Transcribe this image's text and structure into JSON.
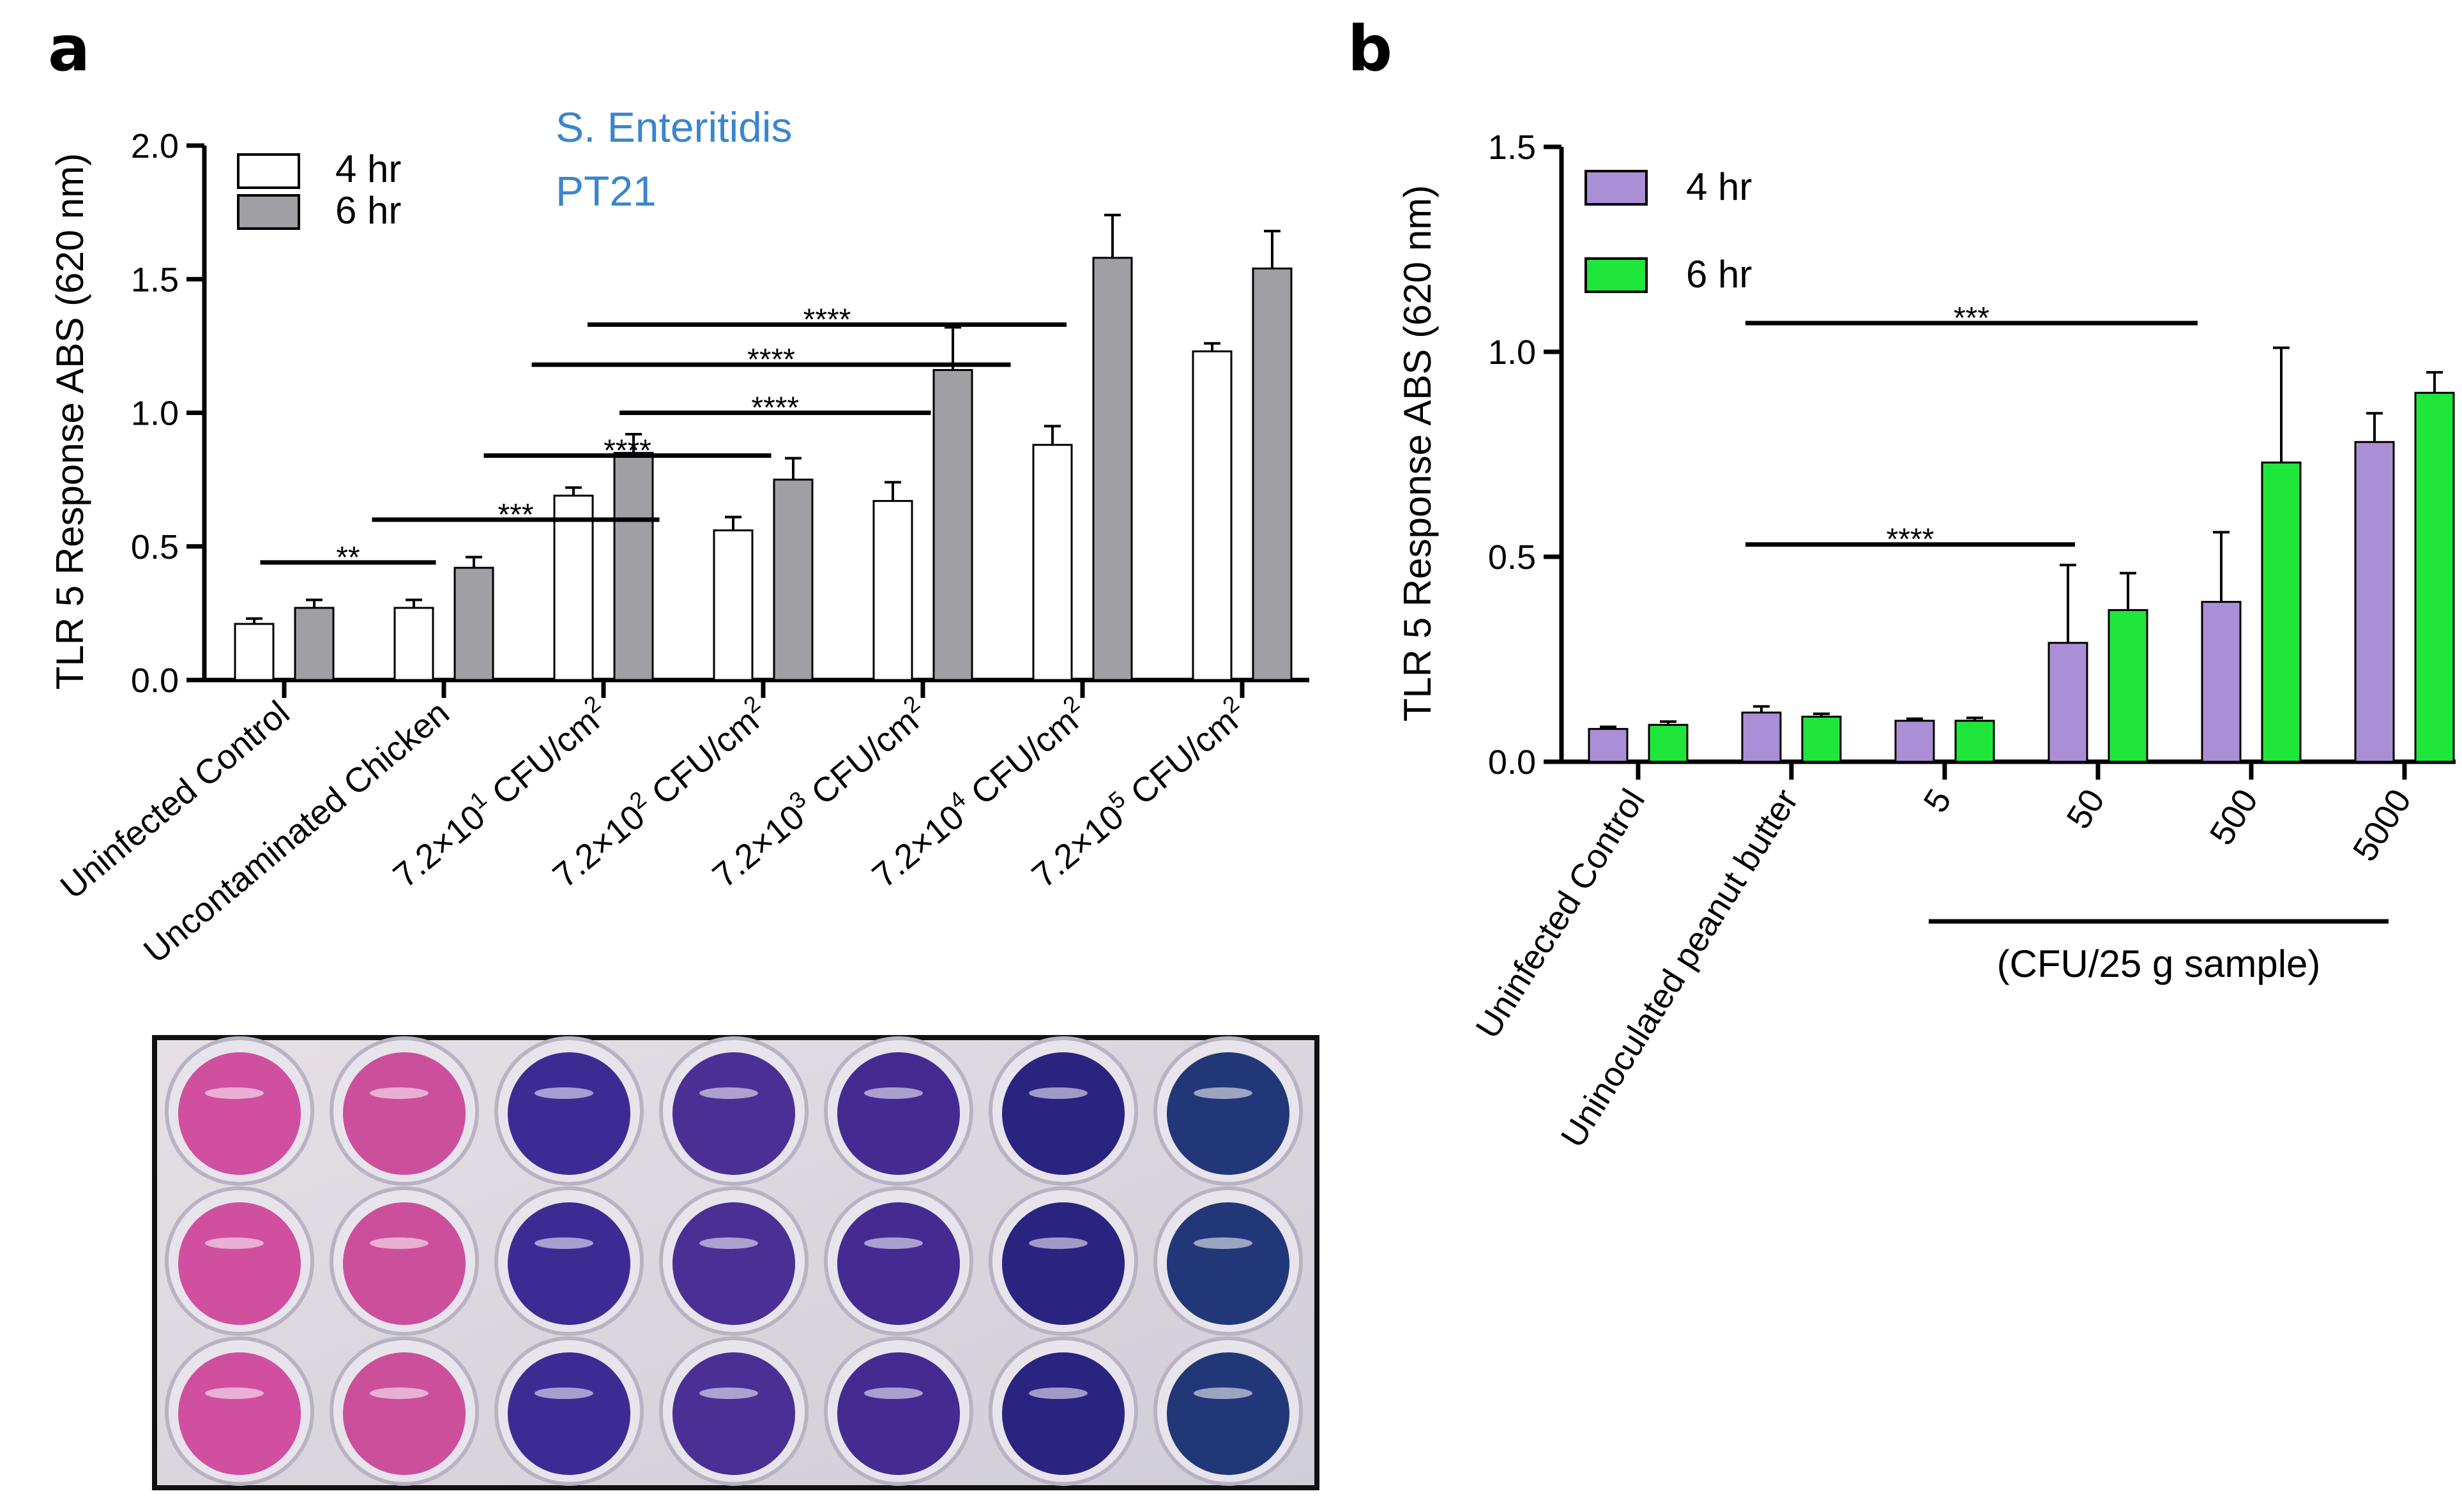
{
  "figure": {
    "panel_a_letter": "a",
    "panel_b_letter": "b",
    "plate_well_colors": [
      [
        "#d04f9f",
        "#cc4f9c",
        "#3d2b94",
        "#4a2f95",
        "#442b92",
        "#2a2380",
        "#223777"
      ],
      [
        "#d04f9f",
        "#cc4f9c",
        "#3d2b94",
        "#4a2f95",
        "#442b92",
        "#2a2380",
        "#223777"
      ],
      [
        "#d04f9f",
        "#cc4f9c",
        "#3d2b94",
        "#4a2f95",
        "#442b92",
        "#2a2380",
        "#223777"
      ]
    ]
  },
  "chart_data": [
    {
      "panel": "a",
      "type": "bar",
      "ylabel": "TLR 5 Response ABS (620 nm)",
      "ylim": [
        0,
        2.0
      ],
      "yticks": [
        "0.0",
        "0.5",
        "1.0",
        "1.5",
        "2.0"
      ],
      "ytick_values": [
        0,
        0.5,
        1.0,
        1.5,
        2.0
      ],
      "annotation": [
        "S. Enteritidis",
        "PT21"
      ],
      "legend_position": "top-left",
      "categories": [
        {
          "base": "Uninfected Control",
          "sup": "",
          "suffix": ""
        },
        {
          "base": "Uncontaminated Chicken",
          "sup": "",
          "suffix": ""
        },
        {
          "base": "7.2×10",
          "sup": "1",
          "suffix": " CFU/cm",
          "sup2": "2"
        },
        {
          "base": "7.2×10",
          "sup": "2",
          "suffix": " CFU/cm",
          "sup2": "2"
        },
        {
          "base": "7.2×10",
          "sup": "3",
          "suffix": " CFU/cm",
          "sup2": "2"
        },
        {
          "base": "7.2×10",
          "sup": "4",
          "suffix": " CFU/cm",
          "sup2": "2"
        },
        {
          "base": "7.2×10",
          "sup": "5",
          "suffix": " CFU/cm",
          "sup2": "2"
        }
      ],
      "series": [
        {
          "name": "4 hr",
          "color": "#ffffff",
          "values": [
            0.21,
            0.27,
            0.69,
            0.56,
            0.67,
            0.88,
            1.23
          ],
          "errors": [
            0.02,
            0.03,
            0.03,
            0.05,
            0.07,
            0.07,
            0.03
          ]
        },
        {
          "name": "6 hr",
          "color": "#a0a0a4",
          "values": [
            0.27,
            0.42,
            0.85,
            0.75,
            1.16,
            1.58,
            1.54
          ],
          "errors": [
            0.03,
            0.04,
            0.07,
            0.08,
            0.16,
            0.16,
            0.14
          ]
        }
      ],
      "significance": [
        {
          "label": "**",
          "x1": 0.35,
          "x2": 1.45,
          "y": 0.44
        },
        {
          "label": "***",
          "x1": 1.05,
          "x2": 2.85,
          "y": 0.6
        },
        {
          "label": "****",
          "x1": 1.75,
          "x2": 3.55,
          "y": 0.84
        },
        {
          "label": "****",
          "x1": 2.6,
          "x2": 4.55,
          "y": 1.0
        },
        {
          "label": "****",
          "x1": 2.05,
          "x2": 5.05,
          "y": 1.18
        },
        {
          "label": "****",
          "x1": 2.4,
          "x2": 5.4,
          "y": 1.33
        }
      ]
    },
    {
      "panel": "b",
      "type": "bar",
      "ylabel": "TLR 5 Response ABS (620 nm)",
      "ylim": [
        0,
        1.5
      ],
      "yticks": [
        "0.0",
        "0.5",
        "1.0",
        "1.5"
      ],
      "ytick_values": [
        0,
        0.5,
        1.0,
        1.5
      ],
      "legend_position": "top-left",
      "categories": [
        "Uninfected Control",
        "Uninoculated peanut butter",
        "5",
        "50",
        "500",
        "5000"
      ],
      "group_label": "(CFU/25 g sample)",
      "series": [
        {
          "name": "4 hr",
          "color": "#ab8fd6",
          "values": [
            0.08,
            0.12,
            0.1,
            0.29,
            0.39,
            0.78
          ],
          "errors": [
            0.005,
            0.015,
            0.005,
            0.19,
            0.17,
            0.07
          ]
        },
        {
          "name": "6 hr",
          "color": "#1fe63a",
          "values": [
            0.09,
            0.11,
            0.1,
            0.37,
            0.73,
            0.9
          ],
          "errors": [
            0.008,
            0.007,
            0.007,
            0.09,
            0.28,
            0.05
          ]
        }
      ],
      "significance": [
        {
          "label": "****",
          "x1": 1.2,
          "x2": 3.35,
          "y": 0.53
        },
        {
          "label": "***",
          "x1": 1.2,
          "x2": 4.15,
          "y": 1.07
        }
      ]
    }
  ]
}
